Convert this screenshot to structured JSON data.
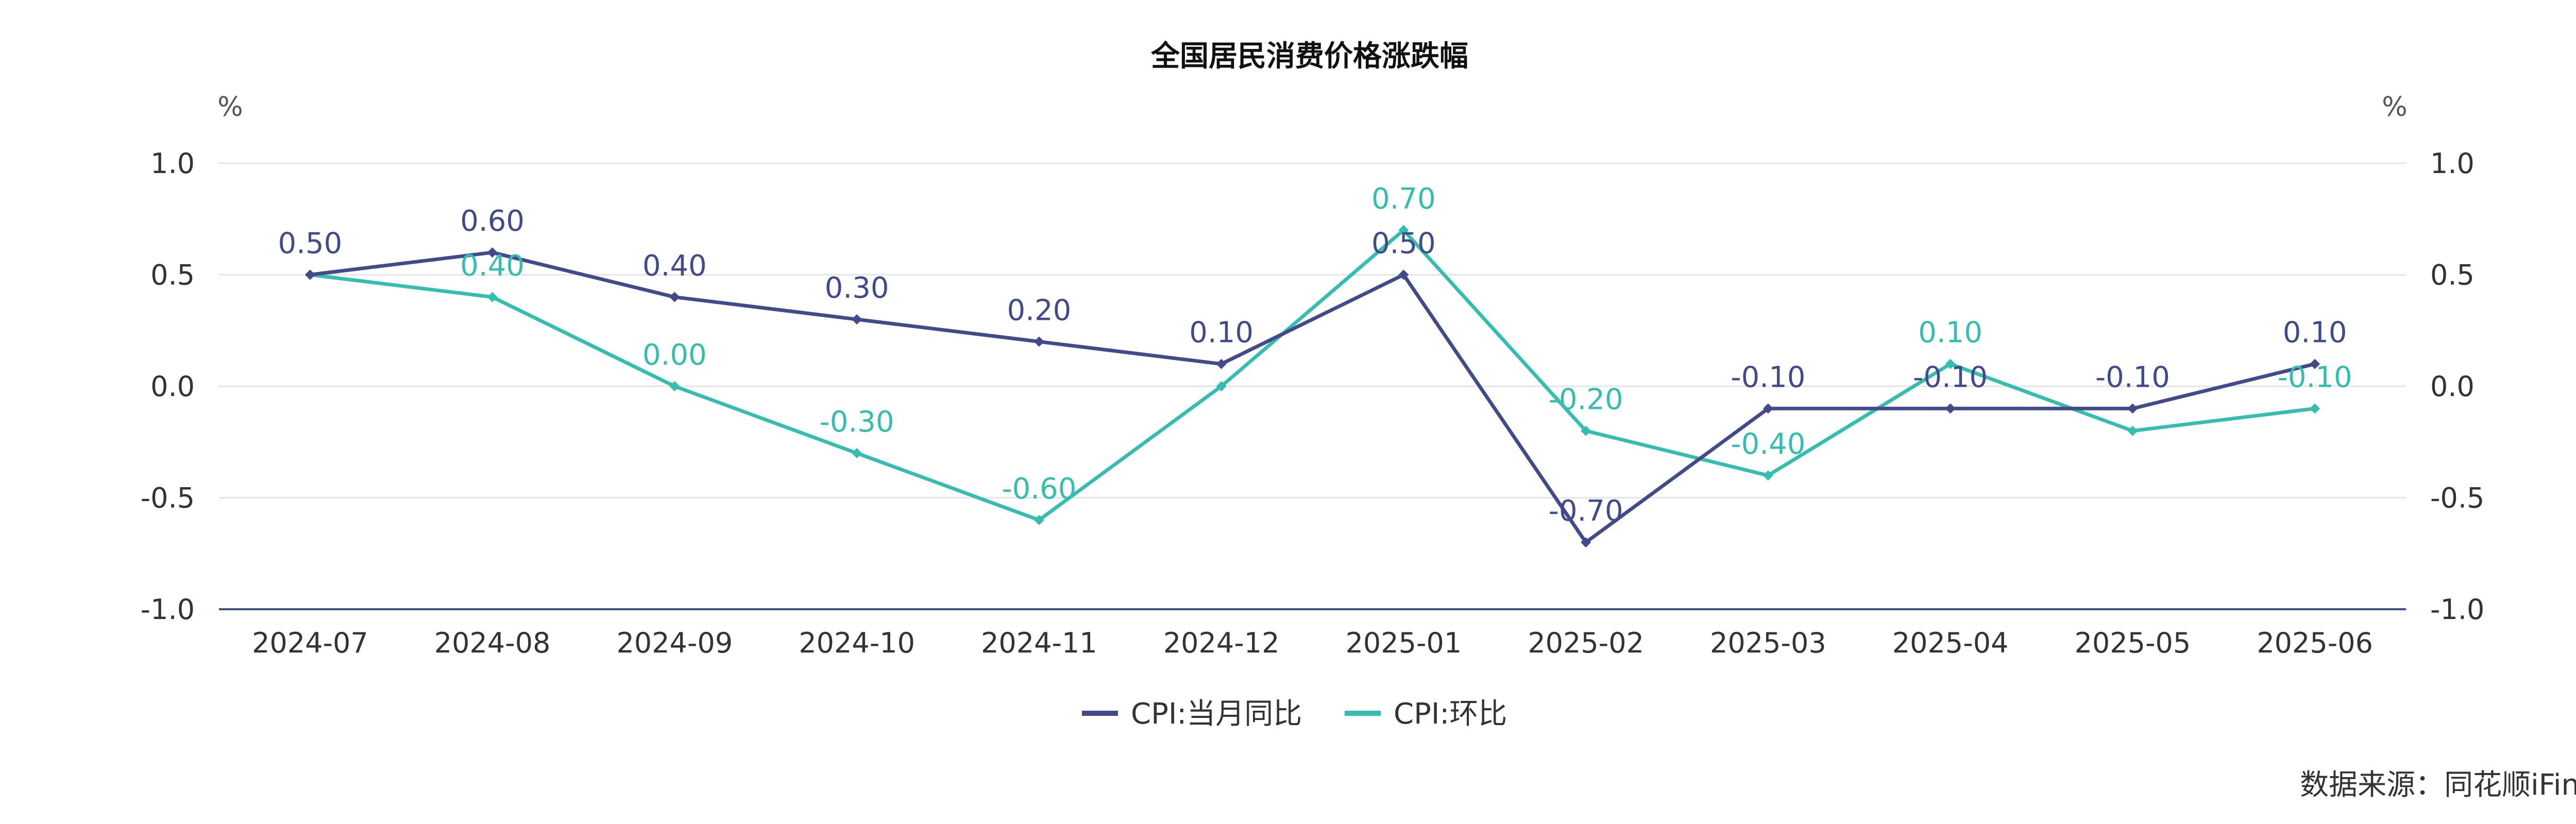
{
  "chart_data": {
    "type": "line",
    "title": "全国居民消费价格涨跌幅",
    "y_unit_left": "%",
    "y_unit_right": "%",
    "categories": [
      "2024-07",
      "2024-08",
      "2024-09",
      "2024-10",
      "2024-11",
      "2024-12",
      "2025-01",
      "2025-02",
      "2025-03",
      "2025-04",
      "2025-05",
      "2025-06"
    ],
    "ylim": [
      -1.0,
      1.0
    ],
    "yticks": [
      "1.0",
      "0.5",
      "0.0",
      "-0.5",
      "-1.0"
    ],
    "ytick_values": [
      1.0,
      0.5,
      0.0,
      -0.5,
      -1.0
    ],
    "grid": true,
    "legend_position": "bottom",
    "series": [
      {
        "name": "CPI:当月同比",
        "color": "#414B8C",
        "values": [
          0.5,
          0.6,
          0.4,
          0.3,
          0.2,
          0.1,
          0.5,
          -0.7,
          -0.1,
          -0.1,
          -0.1,
          0.1
        ],
        "labels": [
          "0.50",
          "0.60",
          "0.40",
          "0.30",
          "0.20",
          "0.10",
          "0.50",
          "-0.70",
          "-0.10",
          "-0.10",
          "-0.10",
          "0.10"
        ]
      },
      {
        "name": "CPI:环比",
        "color": "#35BDB0",
        "values": [
          0.5,
          0.4,
          0.0,
          -0.3,
          -0.6,
          0.0,
          0.7,
          -0.2,
          -0.4,
          0.1,
          -0.2,
          -0.1
        ],
        "labels": [
          "",
          "0.40",
          "0.00",
          "-0.30",
          "-0.60",
          "",
          "0.70",
          "-0.20",
          "-0.40",
          "0.10",
          "",
          "-0.10"
        ]
      }
    ]
  },
  "source_text": "数据来源：同花顺iFinD"
}
